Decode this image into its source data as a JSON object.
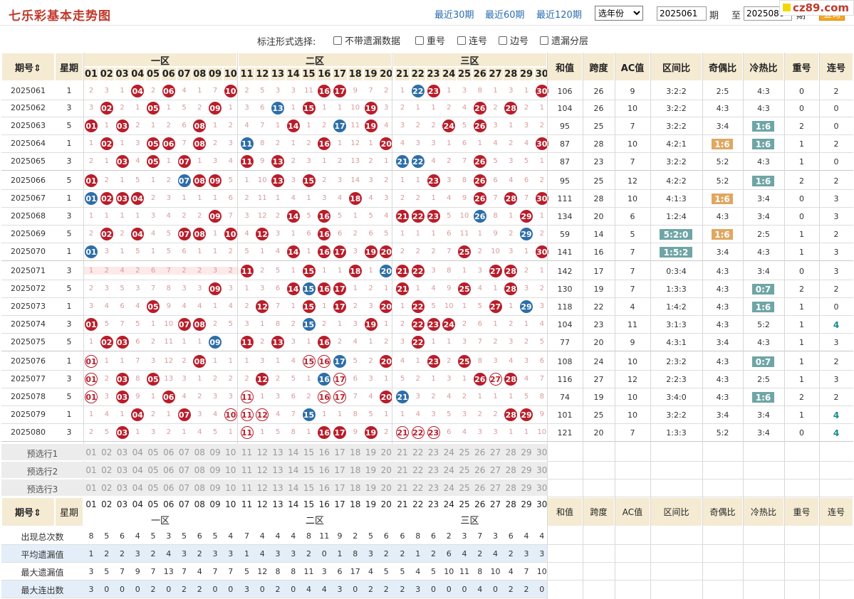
{
  "title": "七乐彩基本走势图",
  "range_links": [
    "最近30期",
    "最近60期",
    "最近120期"
  ],
  "year_select": "选年份",
  "from_value": "2025061",
  "qi_label": "期",
  "to_label": "至",
  "to_value": "2025080",
  "query_button": "查询",
  "watermark": "cz89.com",
  "option_label": "标注形式选择:",
  "options": [
    "不带遗漏数据",
    "重号",
    "连号",
    "边号",
    "遗漏分层"
  ],
  "headers": {
    "period": "期号",
    "weekday": "星期",
    "zone1": "一区",
    "zone2": "二区",
    "zone3": "三区",
    "sum": "和值",
    "span": "跨度",
    "ac": "AC值",
    "zone_ratio": "区间比",
    "odd_even": "奇偶比",
    "hot_cold": "冷热比",
    "repeat": "重号",
    "consec": "连号"
  },
  "balls": [
    "01",
    "02",
    "03",
    "04",
    "05",
    "06",
    "07",
    "08",
    "09",
    "10",
    "11",
    "12",
    "13",
    "14",
    "15",
    "16",
    "17",
    "18",
    "19",
    "20",
    "21",
    "22",
    "23",
    "24",
    "25",
    "26",
    "27",
    "28",
    "29",
    "30"
  ],
  "rows": [
    {
      "period": "2025061",
      "weekday": "1",
      "red": [
        4,
        6,
        10,
        16,
        17,
        23,
        30
      ],
      "ring": [],
      "blue": [
        22
      ],
      "miss": "2,3,1,,2,,4,1,7,,2,5,3,3,11,,,9,7,2,1,,,1,3,8,1,3,1,",
      "sum": "106",
      "span": "26",
      "ac": "9",
      "zr": "3:2:2",
      "oe": "2:5",
      "hc": "4:3",
      "rep": "0",
      "con": "2"
    },
    {
      "period": "2025062",
      "weekday": "3",
      "red": [
        2,
        5,
        9,
        15,
        19,
        26,
        28
      ],
      "ring": [],
      "blue": [
        13
      ],
      "miss": "3,,2,1,,1,5,2,,1,3,6,,1,,1,1,10,,3,2,1,1,2,4,,2,,2,1",
      "sum": "104",
      "span": "26",
      "ac": "10",
      "zr": "3:2:2",
      "oe": "4:3",
      "hc": "4:3",
      "rep": "0",
      "con": "0"
    },
    {
      "period": "2025063",
      "weekday": "5",
      "red": [
        1,
        3,
        8,
        14,
        19,
        24,
        26
      ],
      "ring": [],
      "blue": [
        17
      ],
      "miss": ",1,,2,1,2,6,,1,2,4,7,1,,1,2,,11,,4,3,2,2,,5,,3,1,3,2",
      "sum": "95",
      "span": "25",
      "ac": "7",
      "zr": "3:2:2",
      "oe": "3:4",
      "hc": "1:6",
      "hctag": "teal",
      "rep": "2",
      "con": "0"
    },
    {
      "period": "2025064",
      "weekday": "1",
      "red": [
        2,
        5,
        6,
        8,
        16,
        20,
        30
      ],
      "ring": [],
      "blue": [
        11
      ],
      "miss": "1,,1,3,,,7,,2,3,,8,2,1,2,,1,12,1,,4,3,3,1,6,1,4,2,4,",
      "sum": "87",
      "span": "28",
      "ac": "10",
      "zr": "4:2:1",
      "oe": "1:6",
      "oetag": "orange",
      "hc": "1:6",
      "hctag": "teal",
      "rep": "1",
      "con": "2"
    },
    {
      "period": "2025065",
      "weekday": "3",
      "red": [
        3,
        5,
        7,
        11,
        13,
        26
      ],
      "ring": [],
      "blue": [
        21,
        22
      ],
      "miss": "2,1,,4,,1,,1,3,4,,9,,2,3,1,2,13,2,1,,,4,2,7,,5,3,5,1",
      "sum": "87",
      "span": "23",
      "ac": "7",
      "zr": "3:2:2",
      "oe": "5:2",
      "hc": "4:3",
      "rep": "1",
      "con": "0"
    },
    {
      "period": "2025066",
      "weekday": "5",
      "red": [
        1,
        8,
        9,
        13,
        15,
        23,
        26
      ],
      "ring": [],
      "blue": [
        7
      ],
      "miss": ",2,1,5,1,2,,,,5,1,10,,3,,2,3,14,3,2,1,1,,3,8,,6,4,6,2",
      "sum": "95",
      "span": "25",
      "ac": "12",
      "zr": "4:2:2",
      "oe": "5:2",
      "hc": "1:6",
      "hctag": "teal",
      "rep": "2",
      "con": "2"
    },
    {
      "period": "2025067",
      "weekday": "1",
      "red": [
        2,
        3,
        4,
        18,
        26,
        28,
        30
      ],
      "ring": [],
      "blue": [
        1
      ],
      "miss": ",,,,2,3,1,1,1,6,2,11,1,4,1,3,4,,4,3,2,2,1,4,9,,7,,7,",
      "sum": "111",
      "span": "28",
      "ac": "10",
      "zr": "4:1:3",
      "oe": "1:6",
      "oetag": "orange",
      "hc": "3:4",
      "rep": "0",
      "con": "3"
    },
    {
      "period": "2025068",
      "weekday": "3",
      "red": [
        9,
        14,
        16,
        21,
        22,
        23,
        29
      ],
      "ring": [],
      "blue": [
        26
      ],
      "miss": "1,1,1,1,3,4,2,2,,7,3,12,2,,5,,5,1,5,4,,,,5,10,,8,1,,1",
      "sum": "134",
      "span": "20",
      "ac": "6",
      "zr": "1:2:4",
      "oe": "4:3",
      "hc": "3:4",
      "rep": "0",
      "con": "3"
    },
    {
      "period": "2025069",
      "weekday": "5",
      "red": [
        2,
        4,
        7,
        8,
        10,
        12,
        16
      ],
      "ring": [],
      "blue": [
        29
      ],
      "miss": "2,,2,,4,5,,,1,,4,,3,1,6,,6,2,6,5,1,1,1,6,11,1,9,2,,2",
      "sum": "59",
      "span": "14",
      "ac": "5",
      "zr": "5:2:0",
      "zrtag": "teal",
      "oe": "1:6",
      "oetag": "orange",
      "hc": "2:5",
      "rep": "1",
      "con": "2"
    },
    {
      "period": "2025070",
      "weekday": "1",
      "red": [
        14,
        16,
        17,
        19,
        20,
        25,
        30
      ],
      "ring": [],
      "blue": [
        1
      ],
      "miss": ",3,1,5,1,5,6,1,1,2,5,1,4,,1,,,3,,,2,2,2,7,,2,10,3,1,",
      "sum": "141",
      "span": "16",
      "ac": "7",
      "zr": "1:5:2",
      "zrtag": "teal",
      "oe": "3:4",
      "hc": "4:3",
      "rep": "1",
      "con": "3"
    },
    {
      "period": "2025071",
      "weekday": "3",
      "red": [
        11,
        15,
        18,
        21,
        22,
        27,
        28
      ],
      "ring": [],
      "blue": [
        20
      ],
      "miss": "1,2,4,2,6,7,2,2,3,2,,2,5,1,,1,1,,1,,,,3,8,1,3,,,2,1",
      "sum": "142",
      "span": "17",
      "ac": "7",
      "zr": "0:3:4",
      "oe": "4:3",
      "hc": "3:4",
      "rep": "0",
      "con": "3"
    },
    {
      "period": "2025072",
      "weekday": "5",
      "red": [
        9,
        14,
        16,
        17,
        21,
        25,
        28
      ],
      "ring": [],
      "blue": [
        15
      ],
      "miss": "2,3,5,3,7,8,3,3,,3,1,3,6,,,,,1,2,1,,1,4,9,,4,1,,3,2",
      "sum": "130",
      "span": "19",
      "ac": "7",
      "zr": "1:3:3",
      "oe": "4:3",
      "hc": "0:7",
      "hctag": "teal",
      "rep": "2",
      "con": "2"
    },
    {
      "period": "2025073",
      "weekday": "1",
      "red": [
        5,
        12,
        15,
        17,
        20,
        22,
        27
      ],
      "ring": [],
      "blue": [
        29
      ],
      "miss": "3,4,6,4,,9,4,4,1,4,2,,7,1,,1,,2,3,,1,,5,10,1,5,,1,,3",
      "sum": "118",
      "span": "22",
      "ac": "4",
      "zr": "1:4:2",
      "oe": "4:3",
      "hc": "1:6",
      "hctag": "teal",
      "rep": "1",
      "con": "0"
    },
    {
      "period": "2025074",
      "weekday": "3",
      "red": [
        1,
        7,
        8,
        19,
        22,
        23,
        24
      ],
      "ring": [],
      "blue": [
        15
      ],
      "miss": ",5,7,5,1,10,,,2,5,3,1,8,2,,2,1,3,,1,2,,,,2,6,1,2,1,4",
      "sum": "104",
      "span": "23",
      "ac": "11",
      "zr": "3:1:3",
      "oe": "4:3",
      "hc": "5:2",
      "rep": "1",
      "con": "4",
      "conhi": true
    },
    {
      "period": "2025075",
      "weekday": "5",
      "red": [
        2,
        3,
        11,
        13,
        16,
        22
      ],
      "ring": [],
      "blue": [
        9
      ],
      "miss": "1,,,6,2,11,1,1,,,,2,,3,1,,2,4,1,2,3,,1,1,3,7,2,3,2,5",
      "sum": "77",
      "span": "20",
      "ac": "9",
      "zr": "4:3:1",
      "oe": "3:4",
      "hc": "4:3",
      "rep": "1",
      "con": "3"
    },
    {
      "period": "2025076",
      "weekday": "1",
      "red": [
        8,
        20,
        23,
        25
      ],
      "ring": [
        1,
        15,
        16
      ],
      "blue": [
        17
      ],
      "miss": ",1,1,7,3,12,2,,1,1,1,3,1,4,,,,5,2,,4,1,,2,,8,3,4,3,6",
      "sum": "108",
      "span": "24",
      "ac": "10",
      "zr": "2:3:2",
      "oe": "4:3",
      "hc": "0:7",
      "hctag": "teal",
      "rep": "1",
      "con": "2"
    },
    {
      "period": "2025077",
      "weekday": "3",
      "red": [
        3,
        5,
        12,
        26,
        28
      ],
      "ring": [
        1,
        17,
        27
      ],
      "blue": [
        16
      ],
      "miss": ",2,,8,,13,3,1,2,2,2,,2,5,1,,,6,3,1,5,2,1,3,1,,,,4,7",
      "sum": "116",
      "span": "27",
      "ac": "12",
      "zr": "2:2:3",
      "oe": "4:3",
      "hc": "2:5",
      "rep": "1",
      "con": "3"
    },
    {
      "period": "2025078",
      "weekday": "5",
      "red": [
        3,
        6,
        20
      ],
      "ring": [
        1,
        11,
        16,
        17
      ],
      "blue": [
        21
      ],
      "miss": ",3,,9,1,,4,2,3,3,,1,3,6,2,,,7,4,,,3,2,4,2,1,1,1,5,8",
      "sum": "74",
      "span": "19",
      "ac": "10",
      "zr": "3:4:0",
      "oe": "4:3",
      "hc": "1:6",
      "hctag": "teal",
      "rep": "2",
      "con": "2"
    },
    {
      "period": "2025079",
      "weekday": "1",
      "red": [
        4,
        7,
        28,
        29
      ],
      "ring": [
        10,
        11,
        12
      ],
      "blue": [
        15
      ],
      "miss": "1,4,1,,2,1,,3,4,,,,4,7,,1,1,8,5,1,1,4,3,5,3,2,2,,,9",
      "sum": "101",
      "span": "25",
      "ac": "10",
      "zr": "3:2:2",
      "oe": "3:4",
      "hc": "3:4",
      "rep": "1",
      "con": "4",
      "conhi": true
    },
    {
      "period": "2025080",
      "weekday": "3",
      "red": [
        3,
        16,
        17,
        19
      ],
      "ring": [
        11,
        21,
        22,
        23
      ],
      "blue": [],
      "miss": "2,5,,1,3,2,1,4,5,1,,1,5,8,1,,,9,,2,,,,6,4,3,3,1,1,10",
      "sum": "121",
      "span": "20",
      "ac": "7",
      "zr": "1:3:3",
      "oe": "5:2",
      "hc": "3:4",
      "rep": "0",
      "con": "4",
      "conhi": true
    }
  ],
  "preselect_labels": [
    "预选行1",
    "预选行2",
    "预选行3"
  ],
  "stats": [
    {
      "label": "出现总次数",
      "values": [
        "8",
        "5",
        "6",
        "4",
        "5",
        "3",
        "5",
        "6",
        "5",
        "4",
        "7",
        "4",
        "4",
        "4",
        "8",
        "11",
        "9",
        "2",
        "5",
        "6",
        "6",
        "8",
        "6",
        "2",
        "3",
        "7",
        "3",
        "6",
        "4",
        "4"
      ]
    },
    {
      "label": "平均遗漏值",
      "values": [
        "1",
        "2",
        "2",
        "3",
        "2",
        "4",
        "3",
        "2",
        "3",
        "3",
        "1",
        "4",
        "3",
        "3",
        "2",
        "0",
        "1",
        "8",
        "3",
        "2",
        "2",
        "1",
        "2",
        "6",
        "4",
        "2",
        "4",
        "2",
        "3",
        "3"
      ]
    },
    {
      "label": "最大遗漏值",
      "values": [
        "3",
        "5",
        "7",
        "9",
        "7",
        "13",
        "7",
        "4",
        "7",
        "7",
        "5",
        "12",
        "8",
        "8",
        "11",
        "3",
        "6",
        "17",
        "4",
        "5",
        "5",
        "4",
        "5",
        "10",
        "11",
        "8",
        "10",
        "4",
        "7",
        "10"
      ]
    },
    {
      "label": "最大连出数",
      "values": [
        "3",
        "0",
        "0",
        "0",
        "2",
        "0",
        "2",
        "2",
        "0",
        "0",
        "3",
        "0",
        "2",
        "0",
        "4",
        "4",
        "3",
        "0",
        "2",
        "2",
        "2",
        "3",
        "0",
        "0",
        "0",
        "4",
        "0",
        "2",
        "2",
        "0"
      ]
    }
  ]
}
